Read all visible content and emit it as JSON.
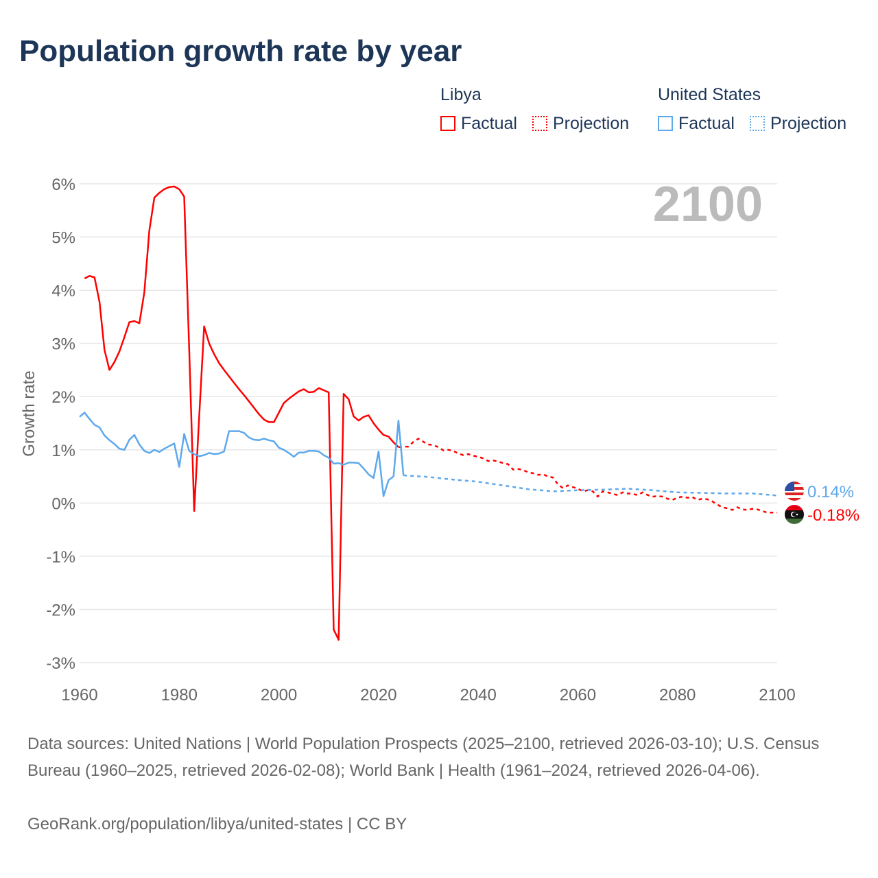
{
  "title": "Population growth rate by year",
  "legend": {
    "groups": [
      {
        "name": "Libya",
        "color": "#ff0000",
        "factual": "Factual",
        "projection": "Projection"
      },
      {
        "name": "United States",
        "color": "#5ea8ec",
        "factual": "Factual",
        "projection": "Projection"
      }
    ]
  },
  "chart_data": {
    "type": "line",
    "ylabel": "Growth rate",
    "xlabel": "",
    "year_watermark": "2100",
    "xlim": [
      1960,
      2100
    ],
    "ylim": [
      -3,
      6
    ],
    "x_ticks": [
      "1960",
      "1980",
      "2000",
      "2020",
      "2040",
      "2060",
      "2080",
      "2100"
    ],
    "y_ticks": [
      "6%",
      "5%",
      "4%",
      "3%",
      "2%",
      "1%",
      "0%",
      "-1%",
      "-2%",
      "-3%"
    ],
    "series": [
      {
        "name": "Libya Factual",
        "color": "#ff0000",
        "dashed": false,
        "x_start": 1961,
        "values": [
          4.22,
          4.27,
          4.24,
          3.78,
          2.88,
          2.5,
          2.65,
          2.85,
          3.12,
          3.4,
          3.42,
          3.38,
          3.96,
          5.12,
          5.74,
          5.83,
          5.9,
          5.94,
          5.95,
          5.9,
          5.76,
          2.9,
          -0.15,
          1.6,
          3.32,
          3.0,
          2.8,
          2.63,
          2.5,
          2.38,
          2.26,
          2.14,
          2.03,
          1.91,
          1.79,
          1.67,
          1.57,
          1.52,
          1.52,
          1.7,
          1.88,
          1.96,
          2.03,
          2.1,
          2.14,
          2.08,
          2.09,
          2.16,
          2.12,
          2.08,
          -2.38,
          -2.57,
          2.05,
          1.95,
          1.63,
          1.55,
          1.62,
          1.65,
          1.5,
          1.38,
          1.28,
          1.25,
          1.14,
          1.05
        ]
      },
      {
        "name": "Libya Projection",
        "color": "#ff0000",
        "dashed": true,
        "x_start": 2024,
        "values": [
          1.05,
          1.06,
          1.06,
          1.15,
          1.21,
          1.15,
          1.1,
          1.09,
          1.05,
          0.99,
          1.0,
          0.98,
          0.93,
          0.9,
          0.92,
          0.89,
          0.87,
          0.84,
          0.79,
          0.8,
          0.78,
          0.75,
          0.73,
          0.63,
          0.64,
          0.62,
          0.58,
          0.56,
          0.53,
          0.54,
          0.5,
          0.48,
          0.35,
          0.28,
          0.33,
          0.3,
          0.27,
          0.22,
          0.24,
          0.22,
          0.12,
          0.22,
          0.2,
          0.17,
          0.15,
          0.2,
          0.18,
          0.17,
          0.15,
          0.2,
          0.15,
          0.12,
          0.13,
          0.12,
          0.08,
          0.06,
          0.1,
          0.12,
          0.1,
          0.11,
          0.06,
          0.08,
          0.07,
          0.03,
          -0.03,
          -0.08,
          -0.1,
          -0.13,
          -0.08,
          -0.12,
          -0.13,
          -0.11,
          -0.12,
          -0.15,
          -0.18,
          -0.18,
          -0.18
        ]
      },
      {
        "name": "United States Factual",
        "color": "#5ea8ec",
        "dashed": false,
        "x_start": 1960,
        "values": [
          1.62,
          1.7,
          1.58,
          1.47,
          1.42,
          1.27,
          1.18,
          1.11,
          1.02,
          1.0,
          1.19,
          1.28,
          1.1,
          0.98,
          0.94,
          1.0,
          0.96,
          1.02,
          1.07,
          1.12,
          0.68,
          1.3,
          0.98,
          0.92,
          0.88,
          0.9,
          0.94,
          0.92,
          0.93,
          0.97,
          1.35,
          1.35,
          1.35,
          1.32,
          1.23,
          1.19,
          1.18,
          1.21,
          1.18,
          1.16,
          1.04,
          1.0,
          0.94,
          0.87,
          0.95,
          0.95,
          0.98,
          0.98,
          0.97,
          0.9,
          0.85,
          0.74,
          0.75,
          0.72,
          0.76,
          0.76,
          0.75,
          0.65,
          0.54,
          0.47,
          0.97,
          0.13,
          0.43,
          0.5,
          1.55,
          0.52
        ]
      },
      {
        "name": "United States Projection",
        "color": "#5ea8ec",
        "dashed": true,
        "x": [
          2025,
          2030,
          2035,
          2040,
          2045,
          2050,
          2055,
          2060,
          2065,
          2070,
          2075,
          2080,
          2085,
          2090,
          2095,
          2099,
          2100
        ],
        "values": [
          0.52,
          0.49,
          0.44,
          0.4,
          0.33,
          0.26,
          0.22,
          0.24,
          0.25,
          0.27,
          0.24,
          0.2,
          0.19,
          0.18,
          0.18,
          0.15,
          0.14
        ]
      }
    ],
    "end_labels": [
      {
        "country": "United States",
        "value": "0.14%",
        "color": "#5ea8ec"
      },
      {
        "country": "Libya",
        "value": "-0.18%",
        "color": "#ff0000"
      }
    ]
  },
  "footer": {
    "sources": "Data sources: United Nations | World Population Prospects (2025–2100, retrieved 2026-03-10); U.S. Census Bureau (1960–2025, retrieved 2026-02-08); World Bank | Health (1961–2024, retrieved 2026-04-06).",
    "link": "GeoRank.org/population/libya/united-states | CC BY"
  }
}
